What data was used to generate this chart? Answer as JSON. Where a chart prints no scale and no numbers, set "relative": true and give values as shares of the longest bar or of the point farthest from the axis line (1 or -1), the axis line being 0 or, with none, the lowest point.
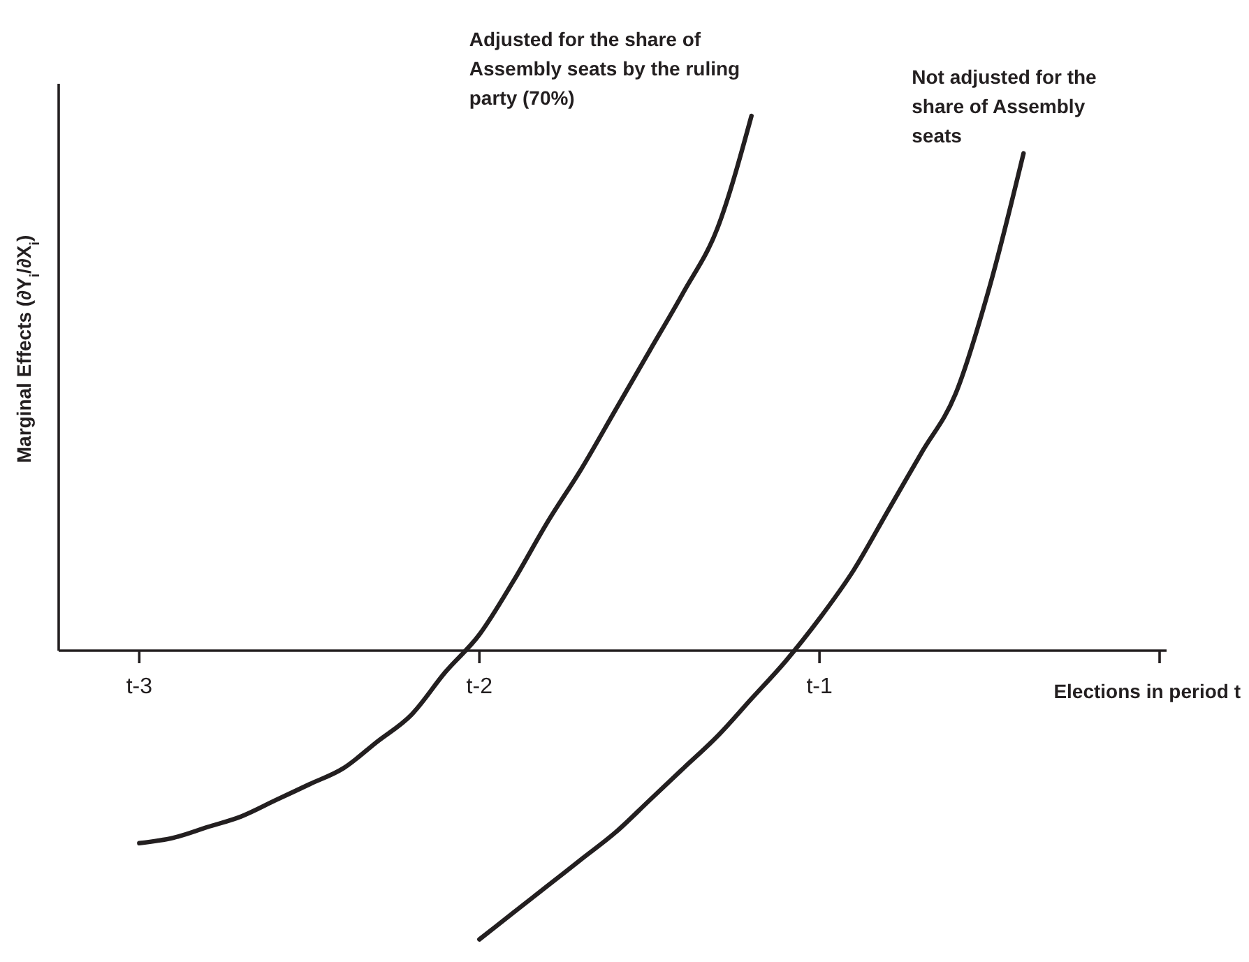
{
  "chart_data": {
    "type": "line",
    "relative": true,
    "xlabel": "Elections in period t",
    "ylabel": "Marginal Effects (∂Y$_{i}$/∂X$_{i}$)",
    "categories": [
      null,
      null,
      "t-3",
      null,
      null,
      null,
      null,
      null,
      null,
      null,
      null,
      null,
      "t-2",
      null,
      null,
      null,
      null,
      null,
      null,
      null,
      null,
      null,
      "t-1",
      null,
      null,
      null,
      null,
      null,
      null,
      null,
      null,
      null,
      null
    ],
    "series": [
      {
        "name": "Adjusted for the share of Assembly seats by the ruling party (70%)",
        "color": "#231f20",
        "values": [
          null,
          null,
          -0.36,
          -0.35,
          -0.33,
          -0.31,
          -0.28,
          -0.25,
          -0.22,
          -0.17,
          -0.12,
          -0.04,
          0.03,
          0.13,
          0.24,
          0.34,
          0.45,
          0.56,
          0.67,
          0.79,
          1.0,
          null,
          null,
          null,
          null,
          null,
          null,
          null,
          null,
          null,
          null,
          null,
          null
        ]
      },
      {
        "name": "Not adjusted for the share of Assembly seats",
        "color": "#231f20",
        "values": [
          null,
          null,
          null,
          null,
          null,
          null,
          null,
          null,
          null,
          null,
          null,
          null,
          -0.54,
          -0.49,
          -0.44,
          -0.39,
          -0.34,
          -0.28,
          -0.22,
          -0.16,
          -0.09,
          -0.02,
          0.06,
          0.15,
          0.26,
          0.37,
          0.48,
          0.68,
          0.93,
          null,
          null,
          null,
          null
        ]
      }
    ]
  }
}
